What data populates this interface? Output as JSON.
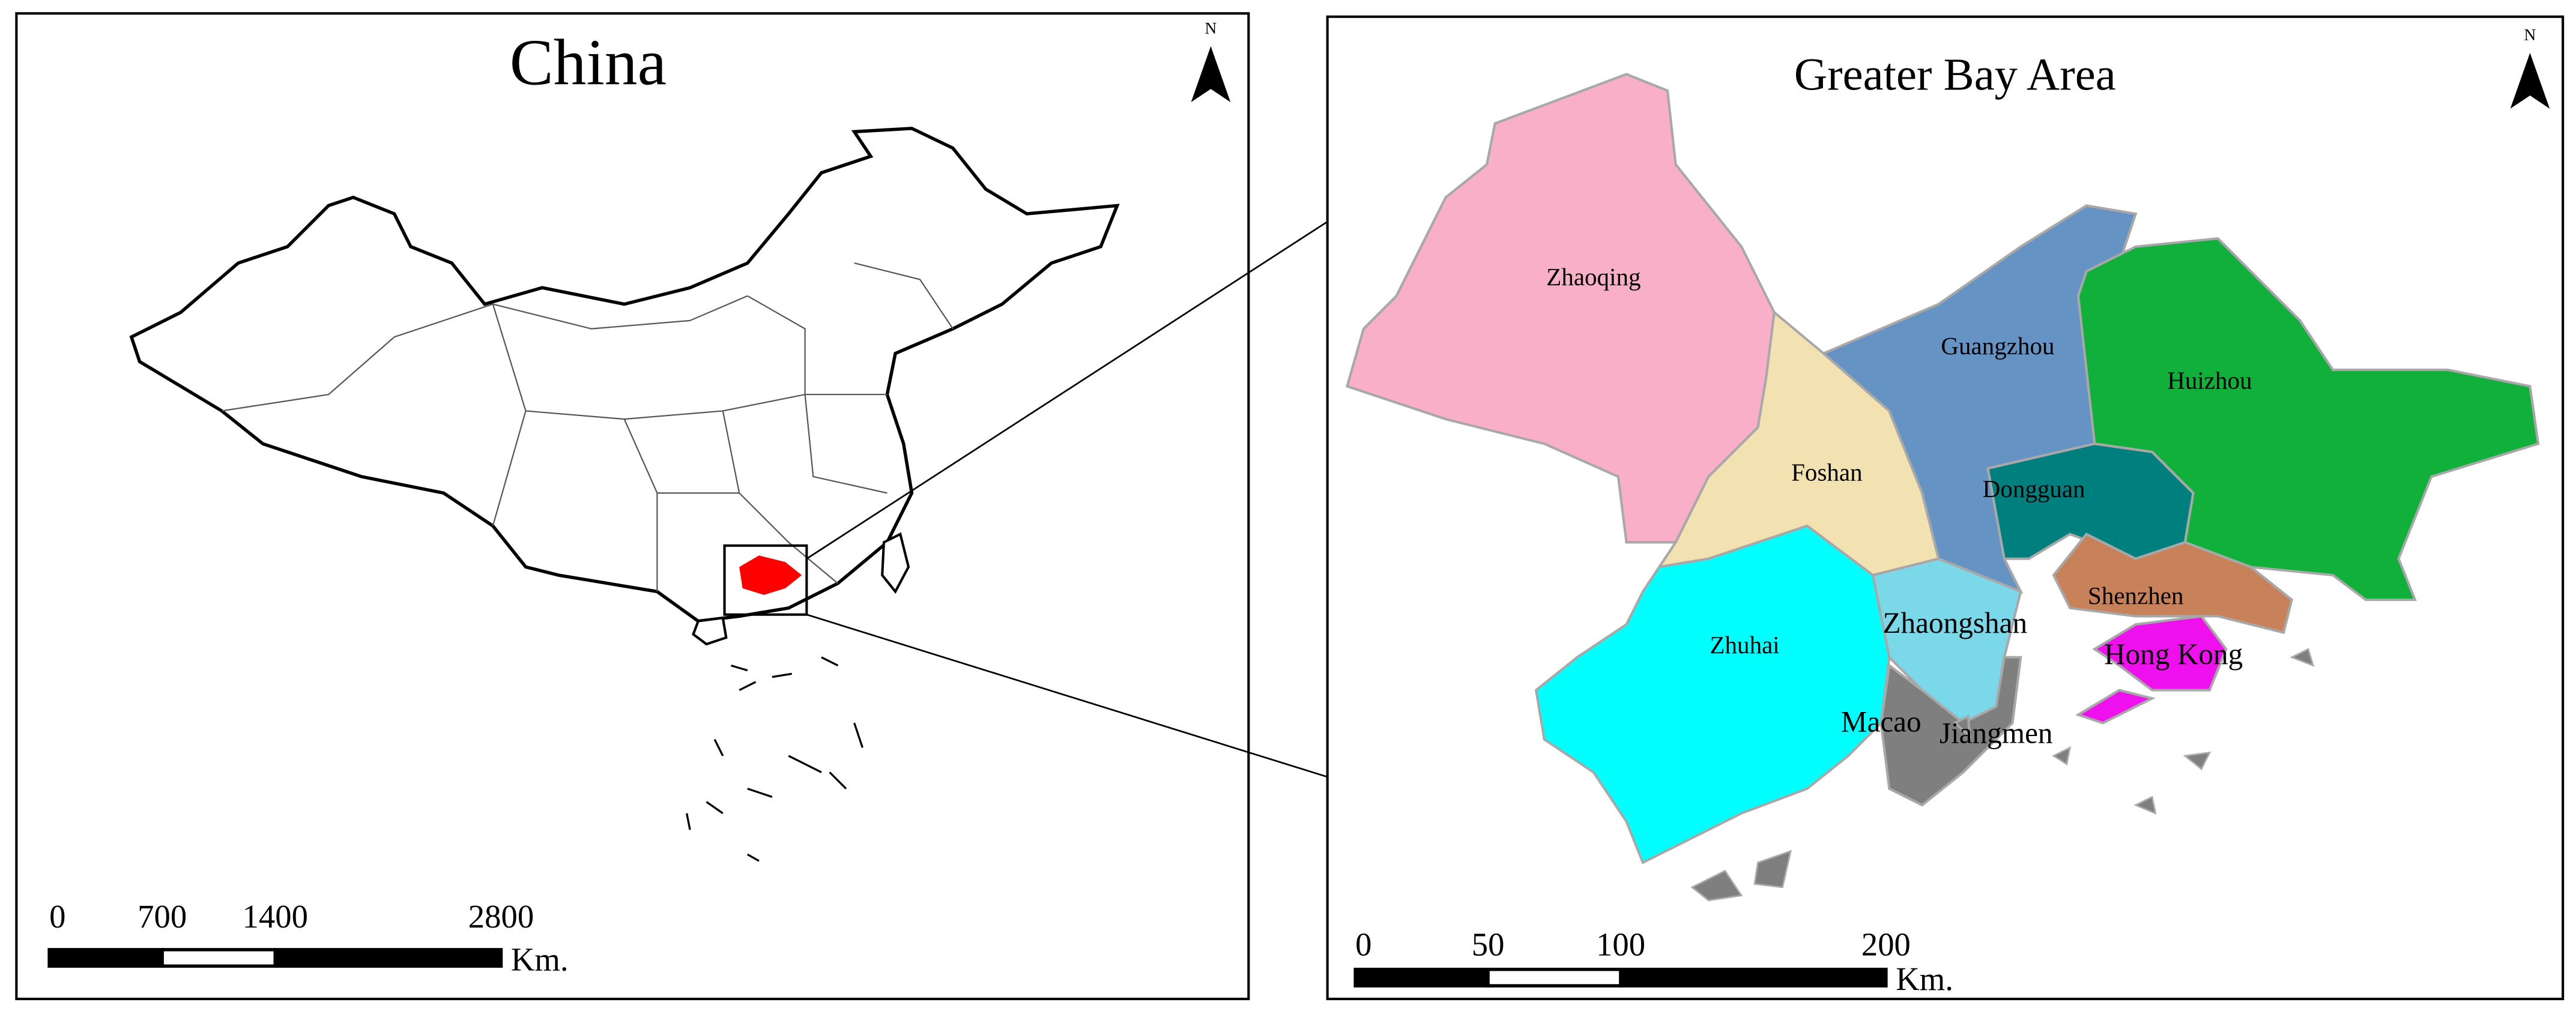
{
  "china_map": {
    "title": "China",
    "north": "N",
    "highlight_color": "#ff0000",
    "scale_bar": {
      "ticks": [
        0,
        700,
        1400,
        2800
      ],
      "unit": "Km."
    }
  },
  "bay_area_map": {
    "title": "Greater Bay Area",
    "north": "N",
    "regions": [
      {
        "name": "Zhaoqing",
        "color": "#f9afc8"
      },
      {
        "name": "Foshan",
        "color": "#f2e2b1"
      },
      {
        "name": "Guangzhou",
        "color": "#6593c3"
      },
      {
        "name": "Huizhou",
        "color": "#10b03a"
      },
      {
        "name": "Dongguan",
        "color": "#007f7f"
      },
      {
        "name": "Shenzhen",
        "color": "#c8825a"
      },
      {
        "name": "Hong Kong",
        "color": "#ee11ee"
      },
      {
        "name": "Zhaongshan",
        "color": "#7bd8e8"
      },
      {
        "name": "Zhuhai",
        "color": "#7f7f7f"
      },
      {
        "name": "Macao",
        "color": "#7f7f7f"
      },
      {
        "name": "Jiangmen",
        "color": "#00ffff"
      }
    ],
    "scale_bar": {
      "ticks": [
        0,
        50,
        100,
        200
      ],
      "unit": "Km."
    }
  }
}
